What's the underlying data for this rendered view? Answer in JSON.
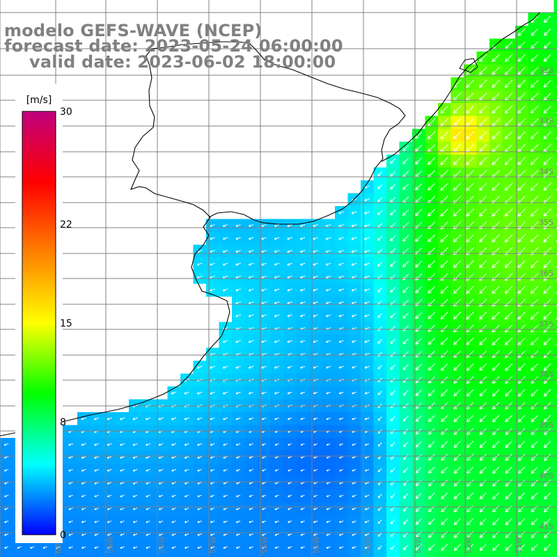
{
  "title": {
    "line1": "modelo GEFS-WAVE (NCEP)",
    "line2": "forecast date: 2023-05-24 06:00:00",
    "line3": "valid date: 2023-06-02 18:00:00"
  },
  "colorbar": {
    "unit": "[m/s]",
    "min": 0,
    "max": 30,
    "tick_labels": [
      "30",
      "22",
      "15",
      "8",
      "0"
    ],
    "tick_values": [
      30,
      22,
      15,
      8,
      0
    ],
    "stops": [
      "#0000ff",
      "#00ffff",
      "#00ff00",
      "#ffff00",
      "#ff8000",
      "#ff0000",
      "#c0007f"
    ]
  },
  "map": {
    "lat_labels": [
      "32S",
      "33S",
      "34S",
      "35S",
      "36S",
      "37S",
      "38S",
      "39S",
      "40S",
      "41S"
    ],
    "lon_labels": [
      "60W",
      "59W",
      "58W",
      "57W",
      "56W",
      "55W",
      "54W",
      "53W",
      "52W",
      "51W"
    ],
    "grid_color": "#808080",
    "coast_color": "#000000"
  }
}
